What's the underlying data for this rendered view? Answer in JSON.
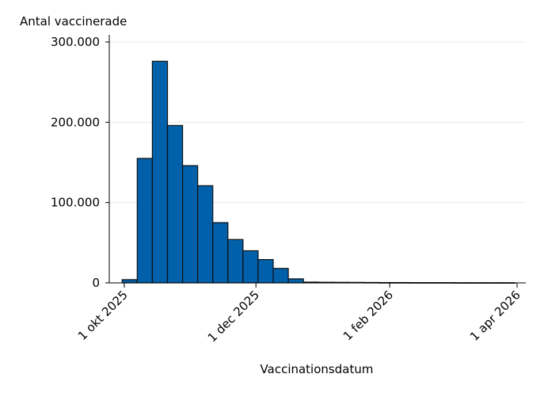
{
  "chart_data": {
    "type": "bar",
    "ylabel": "Antal vaccinerade",
    "xlabel": "Vaccinationsdatum",
    "ylim": [
      0,
      300000
    ],
    "y_ticks": [
      {
        "value": 0,
        "label": "0"
      },
      {
        "value": 100000,
        "label": "100.000"
      },
      {
        "value": 200000,
        "label": "200.000"
      },
      {
        "value": 300000,
        "label": "300.000"
      }
    ],
    "x_ticks": [
      {
        "value": "2025-10-01",
        "label": "1 okt 2025"
      },
      {
        "value": "2025-12-01",
        "label": "1 dec 2025"
      },
      {
        "value": "2026-02-01",
        "label": "1 feb 2026"
      },
      {
        "value": "2026-04-01",
        "label": "1 apr 2026"
      }
    ],
    "bin_width_days": 7,
    "bins": [
      {
        "start": "2025-09-30",
        "value": 4000
      },
      {
        "start": "2025-10-07",
        "value": 155000
      },
      {
        "start": "2025-10-14",
        "value": 276000
      },
      {
        "start": "2025-10-21",
        "value": 196000
      },
      {
        "start": "2025-10-28",
        "value": 146000
      },
      {
        "start": "2025-11-04",
        "value": 121000
      },
      {
        "start": "2025-11-11",
        "value": 75000
      },
      {
        "start": "2025-11-18",
        "value": 54000
      },
      {
        "start": "2025-11-25",
        "value": 40000
      },
      {
        "start": "2025-12-02",
        "value": 29000
      },
      {
        "start": "2025-12-09",
        "value": 18000
      },
      {
        "start": "2025-12-16",
        "value": 5000
      },
      {
        "start": "2025-12-23",
        "value": 1000
      },
      {
        "start": "2025-12-30",
        "value": 800
      },
      {
        "start": "2026-01-06",
        "value": 700
      },
      {
        "start": "2026-01-13",
        "value": 600
      },
      {
        "start": "2026-01-20",
        "value": 500
      },
      {
        "start": "2026-01-27",
        "value": 400
      },
      {
        "start": "2026-02-03",
        "value": 400
      },
      {
        "start": "2026-02-10",
        "value": 300
      },
      {
        "start": "2026-02-17",
        "value": 300
      },
      {
        "start": "2026-02-24",
        "value": 300
      },
      {
        "start": "2026-03-03",
        "value": 200
      },
      {
        "start": "2026-03-10",
        "value": 200
      },
      {
        "start": "2026-03-17",
        "value": 200
      },
      {
        "start": "2026-03-24",
        "value": 200
      }
    ],
    "grid": "horizontal",
    "colors": {
      "bar_fill": "#0060aa",
      "bar_stroke": "#111111",
      "grid": "#e8e8e8"
    }
  }
}
